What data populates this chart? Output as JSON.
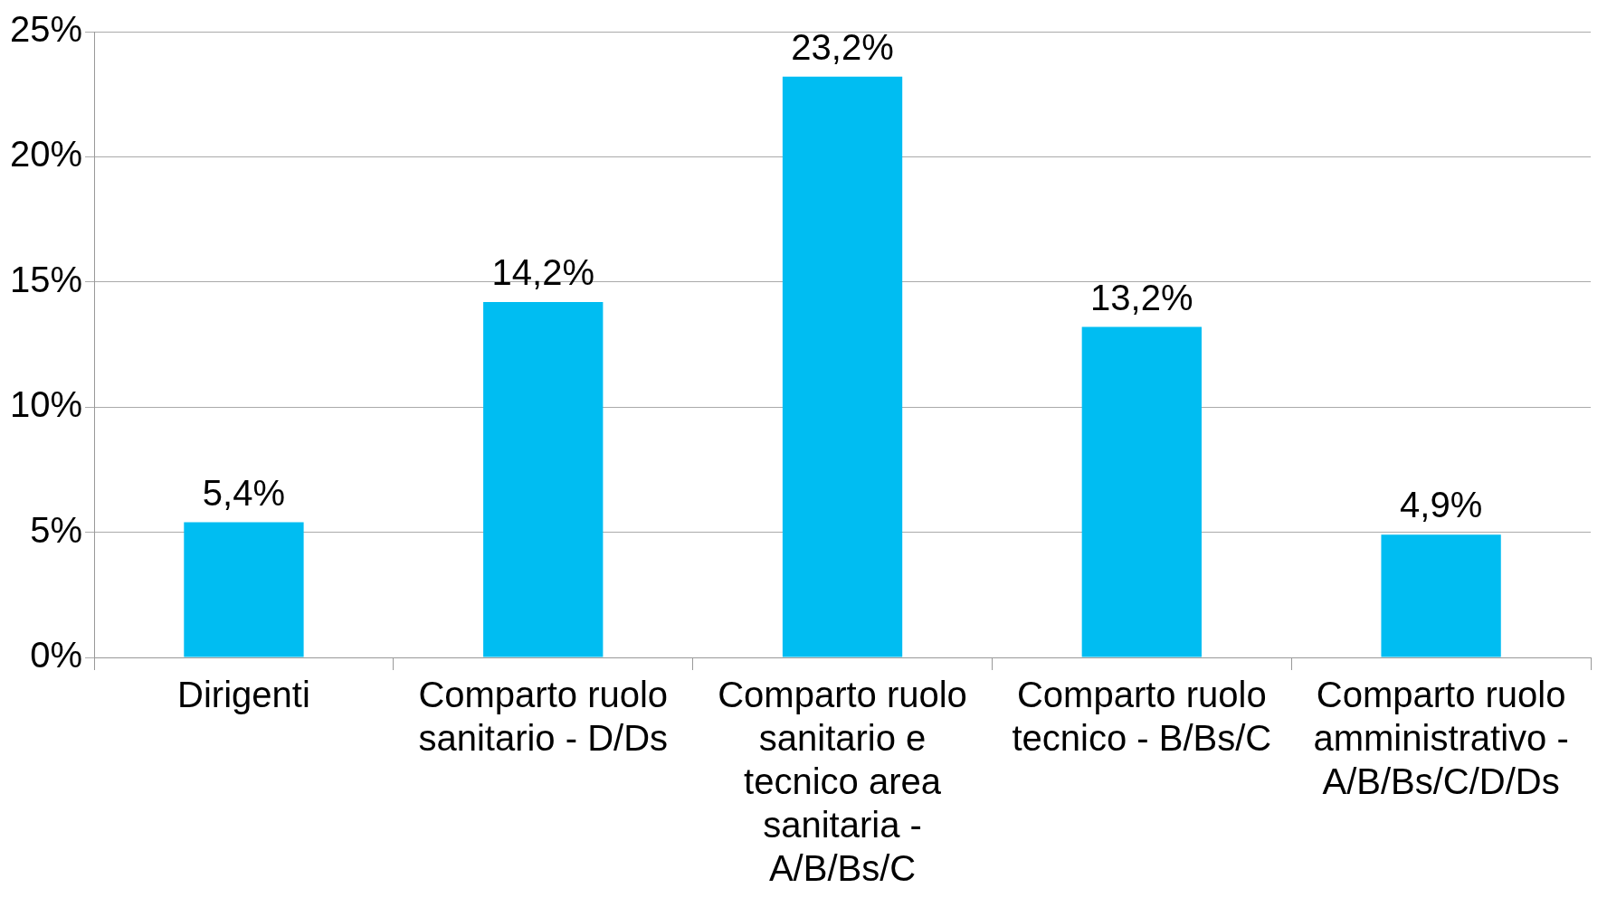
{
  "chart_data": {
    "type": "bar",
    "categories": [
      "Dirigenti",
      "Comparto ruolo sanitario - D/Ds",
      "Comparto ruolo sanitario e tecnico area sanitaria - A/B/Bs/C",
      "Comparto ruolo tecnico - B/Bs/C",
      "Comparto ruolo amministrativo - A/B/Bs/C/D/Ds"
    ],
    "values": [
      5.4,
      14.2,
      23.2,
      13.2,
      4.9
    ],
    "value_labels": [
      "5,4%",
      "14,2%",
      "23,2%",
      "13,2%",
      "4,9%"
    ],
    "color": "#00bdf2",
    "ylim": [
      0,
      25
    ],
    "yticks": [
      {
        "value": 0,
        "label": "0%"
      },
      {
        "value": 5,
        "label": "5%"
      },
      {
        "value": 10,
        "label": "10%"
      },
      {
        "value": 15,
        "label": "15%"
      },
      {
        "value": 20,
        "label": "20%"
      },
      {
        "value": 25,
        "label": "25%"
      }
    ],
    "grid": "y",
    "legend": false
  }
}
